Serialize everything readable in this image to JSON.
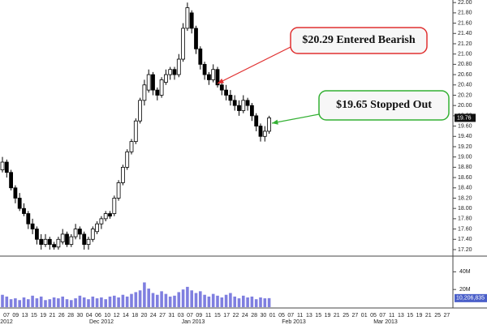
{
  "chart_data": {
    "type": "candlestick",
    "ylim": [
      17.05,
      22.05
    ],
    "yticks": [
      {
        "value": 22,
        "label": "22.00"
      },
      {
        "value": 21.8,
        "label": "21.80"
      },
      {
        "value": 21.6,
        "label": "21.60"
      },
      {
        "value": 21.4,
        "label": "21.40"
      },
      {
        "value": 21.2,
        "label": "21.20"
      },
      {
        "value": 21,
        "label": "21.00"
      },
      {
        "value": 20.8,
        "label": "20.80"
      },
      {
        "value": 20.6,
        "label": "20.60"
      },
      {
        "value": 20.4,
        "label": "20.40"
      },
      {
        "value": 20.2,
        "label": "20.20"
      },
      {
        "value": 20,
        "label": "20.00"
      },
      {
        "value": 19.8,
        "label": "19.80"
      },
      {
        "value": 19.6,
        "label": "19.60"
      },
      {
        "value": 19.4,
        "label": "19.40"
      },
      {
        "value": 19.2,
        "label": "19.20"
      },
      {
        "value": 19,
        "label": "19.00"
      },
      {
        "value": 18.8,
        "label": "18.80"
      },
      {
        "value": 18.6,
        "label": "18.60"
      },
      {
        "value": 18.4,
        "label": "18.40"
      },
      {
        "value": 18.2,
        "label": "18.20"
      },
      {
        "value": 18,
        "label": "18.00"
      },
      {
        "value": 17.8,
        "label": "17.80"
      },
      {
        "value": 17.6,
        "label": "17.60"
      },
      {
        "value": 17.4,
        "label": "17.40"
      },
      {
        "value": 17.2,
        "label": "17.20"
      }
    ],
    "series": {
      "open": [
        18.75,
        18.9,
        18.7,
        18.4,
        18.2,
        18.0,
        17.9,
        17.7,
        17.6,
        17.4,
        17.3,
        17.4,
        17.3,
        17.25,
        17.35,
        17.5,
        17.3,
        17.45,
        17.6,
        17.5,
        17.3,
        17.4,
        17.55,
        17.7,
        17.8,
        17.9,
        17.9,
        18.2,
        18.5,
        18.8,
        19.1,
        19.3,
        19.7,
        20.1,
        20.3,
        20.6,
        20.3,
        20.2,
        20.45,
        20.6,
        20.7,
        20.6,
        20.9,
        21.5,
        21.8,
        21.5,
        21.1,
        20.8,
        20.6,
        20.5,
        20.7,
        20.4,
        20.3,
        20.2,
        20.1,
        20.0,
        19.9,
        20.1,
        20.0,
        19.8,
        19.6,
        19.4,
        19.5
      ],
      "high": [
        19.0,
        18.95,
        18.75,
        18.45,
        18.3,
        18.1,
        17.95,
        17.8,
        17.65,
        17.5,
        17.5,
        17.45,
        17.35,
        17.45,
        17.6,
        17.55,
        17.5,
        17.7,
        17.65,
        17.55,
        17.45,
        17.65,
        17.75,
        17.85,
        17.95,
        17.95,
        18.25,
        18.55,
        18.85,
        19.15,
        19.35,
        19.75,
        20.15,
        20.5,
        20.7,
        20.65,
        20.35,
        20.55,
        20.7,
        20.75,
        20.75,
        21.0,
        21.6,
        22.0,
        21.85,
        21.55,
        21.15,
        20.85,
        20.65,
        20.8,
        20.75,
        20.45,
        20.4,
        20.3,
        20.2,
        20.1,
        20.2,
        20.15,
        20.05,
        19.85,
        19.65,
        19.6,
        19.8
      ],
      "low": [
        18.7,
        18.6,
        18.35,
        18.1,
        17.95,
        17.85,
        17.6,
        17.5,
        17.3,
        17.2,
        17.25,
        17.2,
        17.2,
        17.2,
        17.3,
        17.25,
        17.25,
        17.4,
        17.4,
        17.2,
        17.2,
        17.35,
        17.5,
        17.6,
        17.75,
        17.8,
        17.85,
        18.15,
        18.45,
        18.75,
        19.05,
        19.25,
        19.65,
        20.0,
        20.25,
        20.2,
        20.1,
        20.15,
        20.4,
        20.5,
        20.5,
        20.55,
        20.85,
        21.45,
        21.4,
        21.0,
        20.7,
        20.5,
        20.4,
        20.45,
        20.35,
        20.2,
        20.1,
        20.0,
        19.9,
        19.8,
        19.85,
        19.9,
        19.7,
        19.5,
        19.3,
        19.3,
        19.45
      ],
      "close": [
        18.9,
        18.7,
        18.4,
        18.2,
        18.0,
        17.9,
        17.7,
        17.6,
        17.4,
        17.3,
        17.4,
        17.3,
        17.25,
        17.4,
        17.5,
        17.3,
        17.45,
        17.6,
        17.5,
        17.3,
        17.4,
        17.6,
        17.7,
        17.8,
        17.9,
        17.85,
        18.2,
        18.5,
        18.8,
        19.1,
        19.3,
        19.7,
        20.1,
        20.4,
        20.6,
        20.3,
        20.2,
        20.5,
        20.6,
        20.7,
        20.6,
        20.9,
        21.5,
        21.9,
        21.5,
        21.1,
        20.8,
        20.6,
        20.5,
        20.7,
        20.4,
        20.3,
        20.2,
        20.1,
        20.0,
        19.9,
        20.1,
        20.0,
        19.8,
        19.6,
        19.4,
        19.5,
        19.76
      ]
    },
    "volume": {
      "color": "#7f7fe0",
      "ylim": [
        0,
        55000000
      ],
      "yticks": [
        {
          "value": 40000000,
          "label": "40M"
        },
        {
          "value": 20000000,
          "label": "20M"
        }
      ],
      "values": [
        14000000,
        12000000,
        9000000,
        10000000,
        8000000,
        11000000,
        9000000,
        13000000,
        10000000,
        12000000,
        8000000,
        9000000,
        11000000,
        10000000,
        12000000,
        9000000,
        8000000,
        10000000,
        13000000,
        11000000,
        9000000,
        12000000,
        10000000,
        11000000,
        9000000,
        12000000,
        13000000,
        11000000,
        14000000,
        12000000,
        15000000,
        17000000,
        19000000,
        28000000,
        21000000,
        16000000,
        14000000,
        18000000,
        15000000,
        12000000,
        13000000,
        17000000,
        20000000,
        23000000,
        19000000,
        16000000,
        18000000,
        14000000,
        12000000,
        15000000,
        13000000,
        11000000,
        14000000,
        16000000,
        12000000,
        10000000,
        13000000,
        11000000,
        12000000,
        9000000,
        11000000,
        10000000,
        10206835
      ],
      "last_label": {
        "value": 10206835,
        "label": "10,206,835"
      }
    },
    "date_labels": [
      "07",
      "09",
      "13",
      "15",
      "19",
      "21",
      "26",
      "28",
      "30",
      "04",
      "06",
      "10",
      "12",
      "14",
      "18",
      "20",
      "24",
      "27",
      "31",
      "03",
      "07",
      "09",
      "11",
      "15",
      "17",
      "22",
      "24",
      "28",
      "30",
      "01",
      "05",
      "07",
      "11",
      "13",
      "15",
      "19",
      "21",
      "25",
      "27",
      "01",
      "05",
      "07",
      "11",
      "13",
      "15",
      "19",
      "21",
      "25",
      "27"
    ],
    "month_labels": [
      "2012",
      "Dec 2012",
      "Jan 2013",
      "Feb 2013",
      "Mar 2013"
    ],
    "annotations": [
      {
        "text": "$20.29 Entered Bearish",
        "color": "#e03030"
      },
      {
        "text": "$19.65 Stopped Out",
        "color": "#33b033"
      }
    ]
  }
}
